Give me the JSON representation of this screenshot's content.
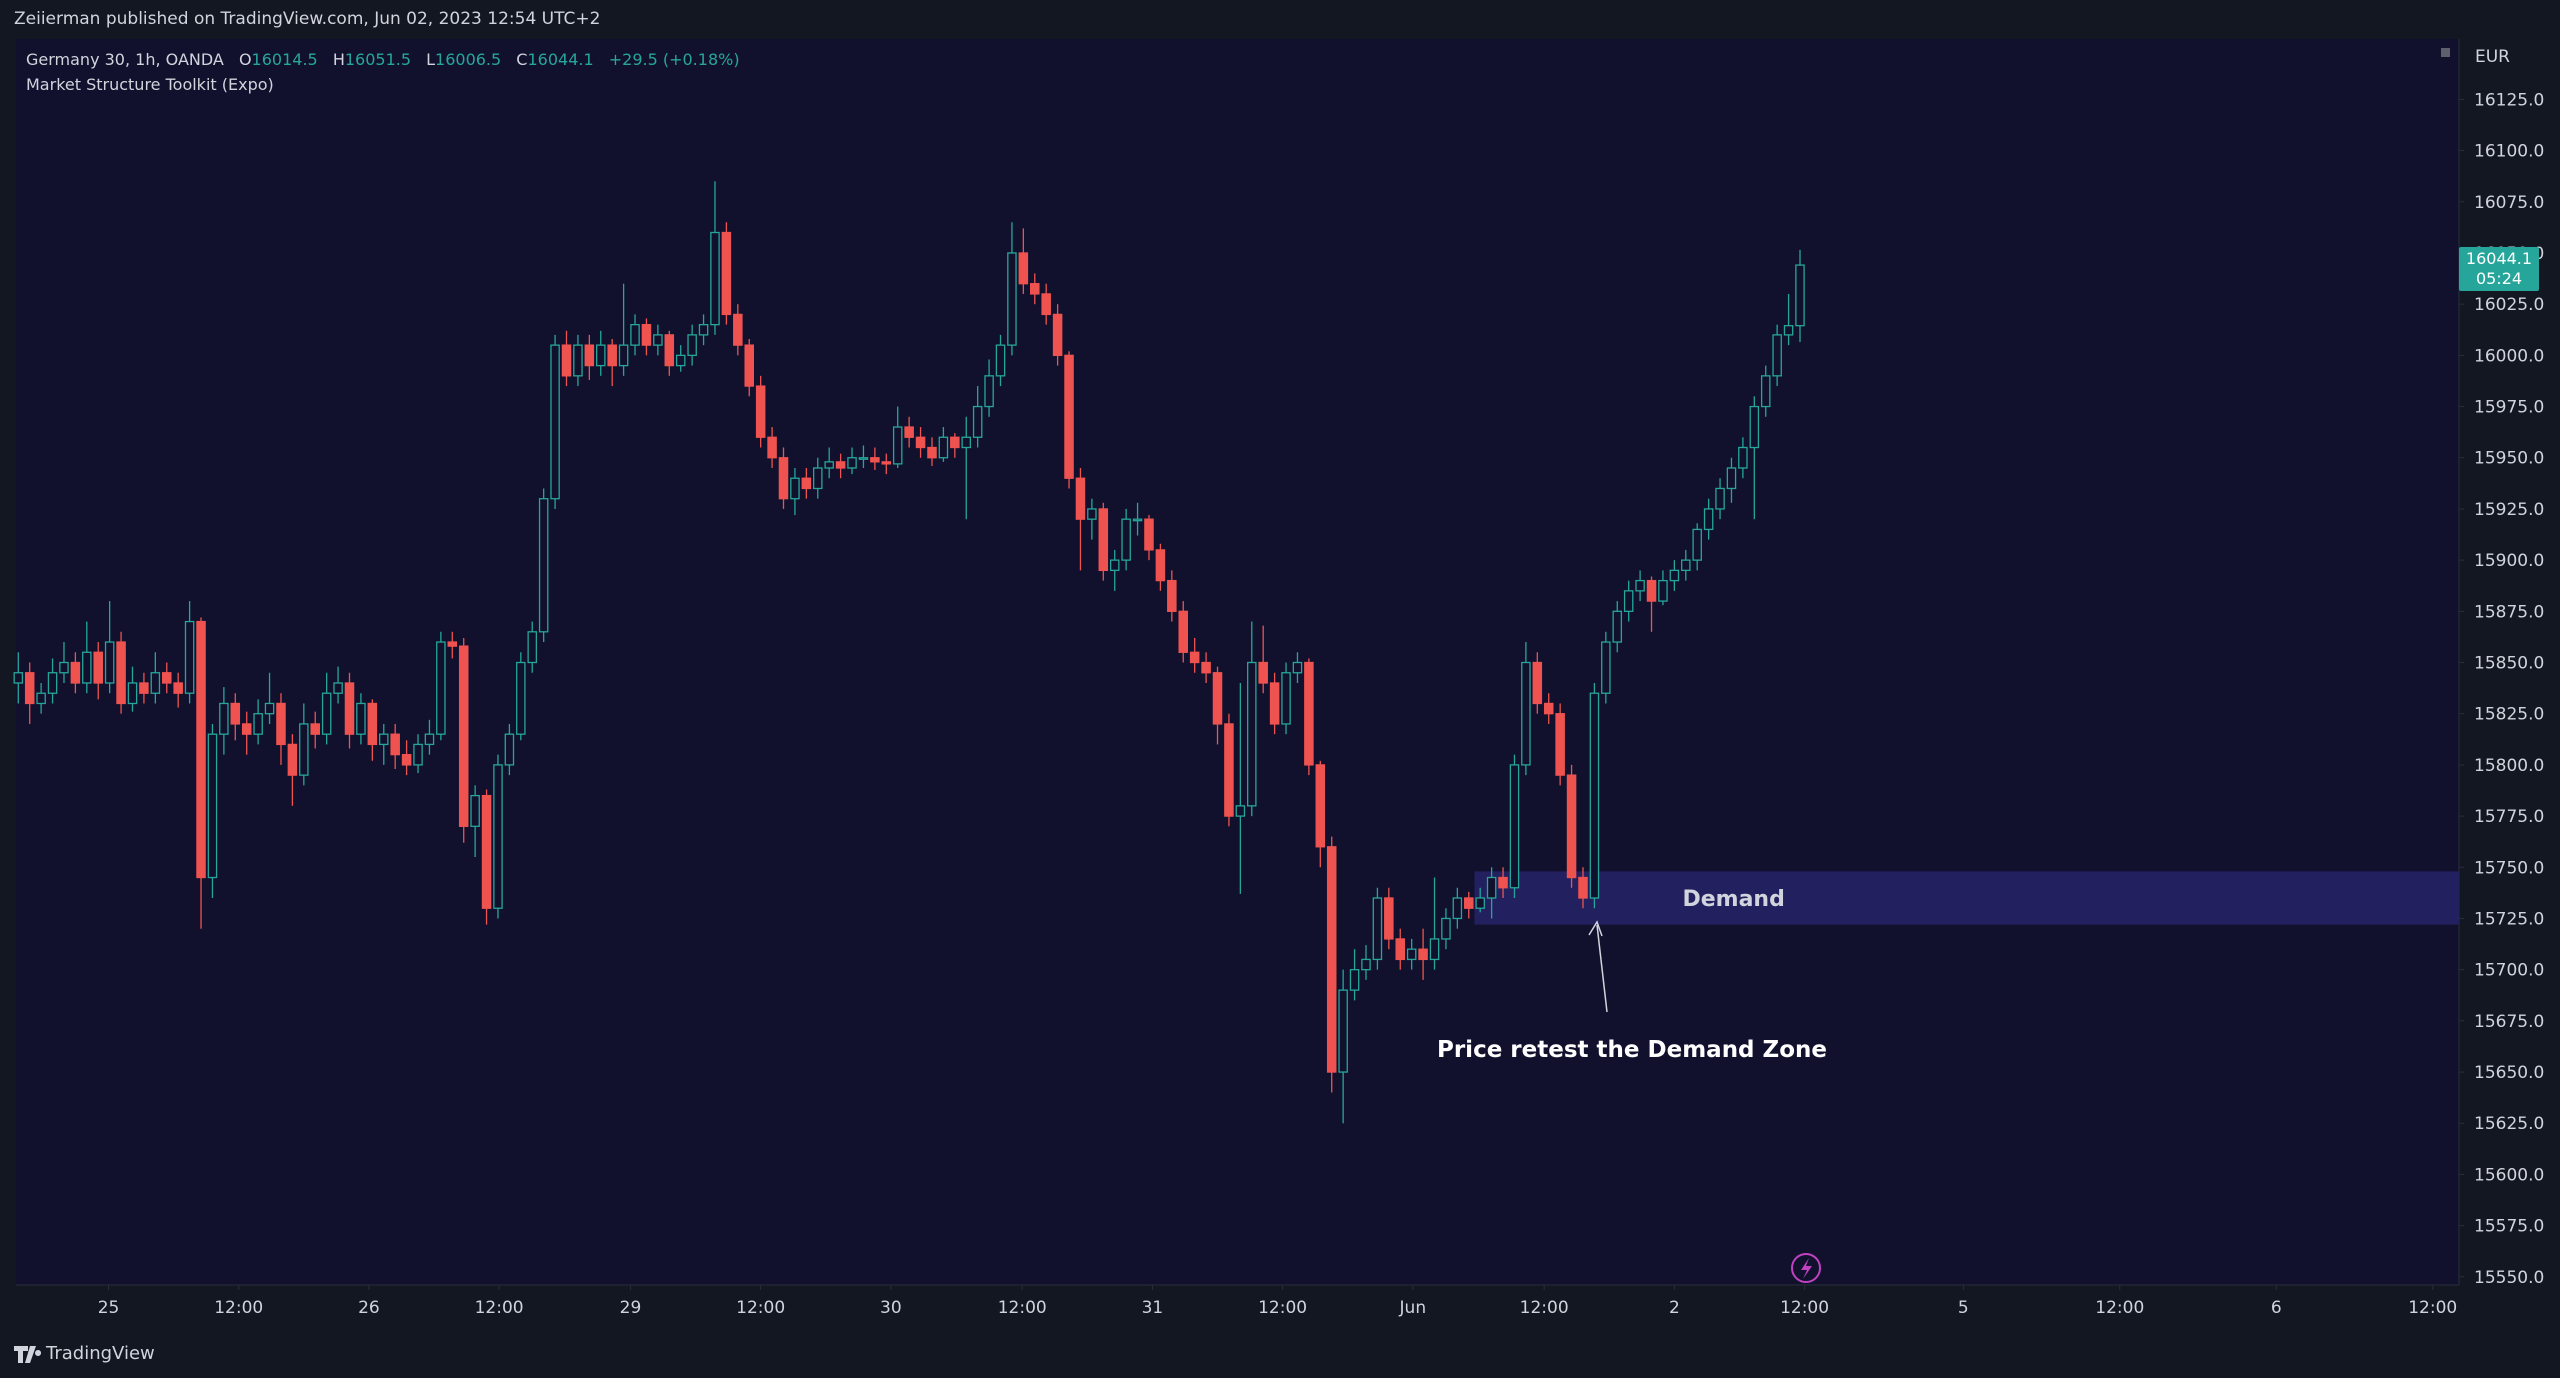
{
  "publisher": "Zeiierman published on TradingView.com, Jun 02, 2023 12:54 UTC+2",
  "symbol": "Germany 30, 1h, OANDA",
  "legend_keys": [
    "O",
    "H",
    "L",
    "C"
  ],
  "change": "+29.5 (+0.18%)",
  "indicator": "Market Structure Toolkit (Expo)",
  "currency": "EUR",
  "countdown": "05:24",
  "annotation": "Price retest the Demand Zone",
  "brand": "TradingView",
  "chart_data": {
    "type": "candlestick",
    "up_color": "#26a69a",
    "down_color": "#ef5350",
    "zone": {
      "label": "Demand",
      "start": 128,
      "top": 15748,
      "bottom": 15722,
      "color": "#22205e"
    },
    "xlim": [
      -0.2,
      213.7
    ],
    "xticks": [
      {
        "value": 7.9,
        "label": "25"
      },
      {
        "value": 19.3,
        "label": "12:00"
      },
      {
        "value": 30.7,
        "label": "26"
      },
      {
        "value": 42.1,
        "label": "12:00"
      },
      {
        "value": 53.6,
        "label": "29"
      },
      {
        "value": 65,
        "label": "12:00"
      },
      {
        "value": 76.4,
        "label": "30"
      },
      {
        "value": 87.9,
        "label": "12:00"
      },
      {
        "value": 99.3,
        "label": "31"
      },
      {
        "value": 110.7,
        "label": "12:00"
      },
      {
        "value": 122.1,
        "label": "Jun"
      },
      {
        "value": 133.6,
        "label": "12:00"
      },
      {
        "value": 145,
        "label": "2"
      },
      {
        "value": 156.4,
        "label": "12:00"
      },
      {
        "value": 170.3,
        "label": "5"
      },
      {
        "value": 184,
        "label": "12:00"
      },
      {
        "value": 197.7,
        "label": "6"
      },
      {
        "value": 211.4,
        "label": "12:00"
      }
    ],
    "ylim": [
      15546,
      16154.5
    ],
    "yticks": [
      {
        "value": 15550,
        "label": "15550.0"
      },
      {
        "value": 15575,
        "label": "15575.0"
      },
      {
        "value": 15600,
        "label": "15600.0"
      },
      {
        "value": 15625,
        "label": "15625.0"
      },
      {
        "value": 15650,
        "label": "15650.0"
      },
      {
        "value": 15675,
        "label": "15675.0"
      },
      {
        "value": 15700,
        "label": "15700.0"
      },
      {
        "value": 15725,
        "label": "15725.0"
      },
      {
        "value": 15750,
        "label": "15750.0"
      },
      {
        "value": 15775,
        "label": "15775.0"
      },
      {
        "value": 15800,
        "label": "15800.0"
      },
      {
        "value": 15825,
        "label": "15825.0"
      },
      {
        "value": 15850,
        "label": "15850.0"
      },
      {
        "value": 15875,
        "label": "15875.0"
      },
      {
        "value": 15900,
        "label": "15900.0"
      },
      {
        "value": 15925,
        "label": "15925.0"
      },
      {
        "value": 15950,
        "label": "15950.0"
      },
      {
        "value": 15975,
        "label": "15975.0"
      },
      {
        "value": 16000,
        "label": "16000.0"
      },
      {
        "value": 16025,
        "label": "16025.0"
      },
      {
        "value": 16050,
        "label": "16050.0"
      },
      {
        "value": 16075,
        "label": "16075.0"
      },
      {
        "value": 16100,
        "label": "16100.0"
      },
      {
        "value": 16125,
        "label": "16125.0"
      }
    ],
    "ohlc": [
      [
        15840,
        15855,
        15830,
        15845
      ],
      [
        15845,
        15850,
        15820,
        15830
      ],
      [
        15830,
        15840,
        15825,
        15835
      ],
      [
        15835,
        15852,
        15830,
        15845
      ],
      [
        15845,
        15860,
        15840,
        15850
      ],
      [
        15850,
        15855,
        15835,
        15840
      ],
      [
        15840,
        15870,
        15835,
        15855
      ],
      [
        15855,
        15860,
        15832,
        15840
      ],
      [
        15840,
        15880,
        15835,
        15860
      ],
      [
        15860,
        15865,
        15825,
        15830
      ],
      [
        15830,
        15848,
        15826,
        15840
      ],
      [
        15840,
        15845,
        15830,
        15835
      ],
      [
        15835,
        15855,
        15830,
        15845
      ],
      [
        15845,
        15850,
        15835,
        15840
      ],
      [
        15840,
        15845,
        15828,
        15835
      ],
      [
        15835,
        15880,
        15830,
        15870
      ],
      [
        15870,
        15872,
        15720,
        15745
      ],
      [
        15745,
        15820,
        15735,
        15815
      ],
      [
        15815,
        15838,
        15805,
        15830
      ],
      [
        15830,
        15835,
        15812,
        15820
      ],
      [
        15820,
        15826,
        15805,
        15815
      ],
      [
        15815,
        15832,
        15810,
        15825
      ],
      [
        15825,
        15845,
        15820,
        15830
      ],
      [
        15830,
        15835,
        15800,
        15810
      ],
      [
        15810,
        15815,
        15780,
        15795
      ],
      [
        15795,
        15830,
        15790,
        15820
      ],
      [
        15820,
        15826,
        15808,
        15815
      ],
      [
        15815,
        15845,
        15810,
        15835
      ],
      [
        15835,
        15848,
        15830,
        15840
      ],
      [
        15840,
        15845,
        15808,
        15815
      ],
      [
        15815,
        15835,
        15810,
        15830
      ],
      [
        15830,
        15832,
        15802,
        15810
      ],
      [
        15810,
        15820,
        15800,
        15815
      ],
      [
        15815,
        15820,
        15798,
        15805
      ],
      [
        15805,
        15812,
        15795,
        15800
      ],
      [
        15800,
        15815,
        15796,
        15810
      ],
      [
        15810,
        15822,
        15805,
        15815
      ],
      [
        15815,
        15865,
        15812,
        15860
      ],
      [
        15860,
        15865,
        15852,
        15858
      ],
      [
        15858,
        15862,
        15762,
        15770
      ],
      [
        15770,
        15790,
        15755,
        15785
      ],
      [
        15785,
        15788,
        15722,
        15730
      ],
      [
        15730,
        15805,
        15725,
        15800
      ],
      [
        15800,
        15820,
        15795,
        15815
      ],
      [
        15815,
        15855,
        15812,
        15850
      ],
      [
        15850,
        15870,
        15845,
        15865
      ],
      [
        15865,
        15935,
        15860,
        15930
      ],
      [
        15930,
        16010,
        15925,
        16005
      ],
      [
        16005,
        16012,
        15985,
        15990
      ],
      [
        15990,
        16010,
        15985,
        16005
      ],
      [
        16005,
        16010,
        15988,
        15995
      ],
      [
        15995,
        16012,
        15990,
        16005
      ],
      [
        16005,
        16008,
        15985,
        15995
      ],
      [
        15995,
        16035,
        15990,
        16005
      ],
      [
        16005,
        16020,
        16000,
        16015
      ],
      [
        16015,
        16018,
        16000,
        16005
      ],
      [
        16005,
        16015,
        16000,
        16010
      ],
      [
        16010,
        16012,
        15990,
        15995
      ],
      [
        15995,
        16005,
        15992,
        16000
      ],
      [
        16000,
        16015,
        15995,
        16010
      ],
      [
        16010,
        16020,
        16005,
        16015
      ],
      [
        16015,
        16085,
        16010,
        16060
      ],
      [
        16060,
        16065,
        16015,
        16020
      ],
      [
        16020,
        16025,
        16000,
        16005
      ],
      [
        16005,
        16008,
        15980,
        15985
      ],
      [
        15985,
        15990,
        15955,
        15960
      ],
      [
        15960,
        15965,
        15945,
        15950
      ],
      [
        15950,
        15955,
        15925,
        15930
      ],
      [
        15930,
        15945,
        15922,
        15940
      ],
      [
        15940,
        15945,
        15930,
        15935
      ],
      [
        15935,
        15950,
        15930,
        15945
      ],
      [
        15945,
        15955,
        15940,
        15948
      ],
      [
        15948,
        15952,
        15940,
        15945
      ],
      [
        15945,
        15955,
        15942,
        15950
      ],
      [
        15950,
        15956,
        15945,
        15950
      ],
      [
        15950,
        15955,
        15944,
        15948
      ],
      [
        15948,
        15952,
        15942,
        15947
      ],
      [
        15947,
        15975,
        15945,
        15965
      ],
      [
        15965,
        15970,
        15955,
        15960
      ],
      [
        15960,
        15965,
        15950,
        15955
      ],
      [
        15955,
        15960,
        15946,
        15950
      ],
      [
        15950,
        15965,
        15948,
        15960
      ],
      [
        15960,
        15962,
        15950,
        15955
      ],
      [
        15955,
        15970,
        15920,
        15960
      ],
      [
        15960,
        15985,
        15955,
        15975
      ],
      [
        15975,
        15998,
        15970,
        15990
      ],
      [
        15990,
        16010,
        15985,
        16005
      ],
      [
        16005,
        16065,
        16000,
        16050
      ],
      [
        16050,
        16062,
        16030,
        16035
      ],
      [
        16035,
        16040,
        16025,
        16030
      ],
      [
        16030,
        16035,
        16015,
        16020
      ],
      [
        16020,
        16025,
        15995,
        16000
      ],
      [
        16000,
        16002,
        15935,
        15940
      ],
      [
        15940,
        15945,
        15895,
        15920
      ],
      [
        15920,
        15930,
        15910,
        15925
      ],
      [
        15925,
        15928,
        15890,
        15895
      ],
      [
        15895,
        15905,
        15885,
        15900
      ],
      [
        15900,
        15925,
        15895,
        15920
      ],
      [
        15920,
        15928,
        15912,
        15920
      ],
      [
        15920,
        15922,
        15900,
        15905
      ],
      [
        15905,
        15908,
        15885,
        15890
      ],
      [
        15890,
        15895,
        15870,
        15875
      ],
      [
        15875,
        15880,
        15850,
        15855
      ],
      [
        15855,
        15862,
        15845,
        15850
      ],
      [
        15850,
        15855,
        15840,
        15845
      ],
      [
        15845,
        15848,
        15810,
        15820
      ],
      [
        15820,
        15825,
        15770,
        15775
      ],
      [
        15775,
        15840,
        15737,
        15780
      ],
      [
        15780,
        15870,
        15775,
        15850
      ],
      [
        15850,
        15868,
        15835,
        15840
      ],
      [
        15840,
        15845,
        15815,
        15820
      ],
      [
        15820,
        15850,
        15815,
        15845
      ],
      [
        15845,
        15855,
        15840,
        15850
      ],
      [
        15850,
        15852,
        15795,
        15800
      ],
      [
        15800,
        15802,
        15750,
        15760
      ],
      [
        15760,
        15765,
        15640,
        15650
      ],
      [
        15650,
        15700,
        15625,
        15690
      ],
      [
        15690,
        15710,
        15685,
        15700
      ],
      [
        15700,
        15712,
        15695,
        15705
      ],
      [
        15705,
        15740,
        15700,
        15735
      ],
      [
        15735,
        15740,
        15710,
        15715
      ],
      [
        15715,
        15720,
        15700,
        15705
      ],
      [
        15705,
        15715,
        15700,
        15710
      ],
      [
        15710,
        15720,
        15695,
        15705
      ],
      [
        15705,
        15745,
        15700,
        15715
      ],
      [
        15715,
        15730,
        15710,
        15725
      ],
      [
        15725,
        15740,
        15720,
        15735
      ],
      [
        15735,
        15738,
        15725,
        15730
      ],
      [
        15730,
        15740,
        15728,
        15735
      ],
      [
        15735,
        15750,
        15725,
        15745
      ],
      [
        15745,
        15750,
        15735,
        15740
      ],
      [
        15740,
        15805,
        15735,
        15800
      ],
      [
        15800,
        15860,
        15795,
        15850
      ],
      [
        15850,
        15855,
        15825,
        15830
      ],
      [
        15830,
        15835,
        15820,
        15825
      ],
      [
        15825,
        15830,
        15790,
        15795
      ],
      [
        15795,
        15800,
        15740,
        15745
      ],
      [
        15745,
        15750,
        15730,
        15735
      ],
      [
        15735,
        15840,
        15730,
        15835
      ],
      [
        15835,
        15865,
        15830,
        15860
      ],
      [
        15860,
        15880,
        15855,
        15875
      ],
      [
        15875,
        15890,
        15870,
        15885
      ],
      [
        15885,
        15895,
        15880,
        15890
      ],
      [
        15890,
        15892,
        15865,
        15880
      ],
      [
        15880,
        15895,
        15878,
        15890
      ],
      [
        15890,
        15900,
        15885,
        15895
      ],
      [
        15895,
        15905,
        15890,
        15900
      ],
      [
        15900,
        15918,
        15895,
        15915
      ],
      [
        15915,
        15930,
        15910,
        15925
      ],
      [
        15925,
        15940,
        15920,
        15935
      ],
      [
        15935,
        15950,
        15928,
        15945
      ],
      [
        15945,
        15960,
        15940,
        15955
      ],
      [
        15955,
        15980,
        15920,
        15975
      ],
      [
        15975,
        15995,
        15970,
        15990
      ],
      [
        15990,
        16015,
        15985,
        16010
      ],
      [
        16010,
        16030,
        16005,
        16014.5
      ],
      [
        16014.5,
        16051.5,
        16006.5,
        16044.1
      ]
    ]
  }
}
